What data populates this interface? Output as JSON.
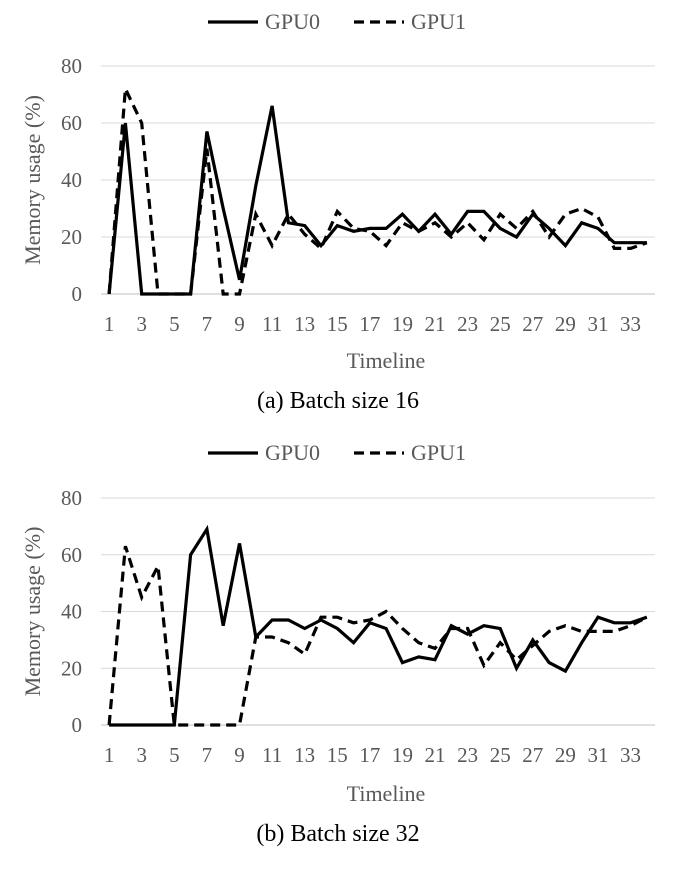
{
  "chart_data": [
    {
      "type": "line",
      "caption": "(a) Batch size 16",
      "xlabel": "Timeline",
      "ylabel": "Memory usage (%)",
      "ylim": [
        0,
        80
      ],
      "yticks": [
        0,
        20,
        40,
        60,
        80
      ],
      "x": [
        1,
        2,
        3,
        4,
        5,
        6,
        7,
        8,
        9,
        10,
        11,
        12,
        13,
        14,
        15,
        16,
        17,
        18,
        19,
        20,
        21,
        22,
        23,
        24,
        25,
        26,
        27,
        28,
        29,
        30,
        31,
        32,
        33,
        34
      ],
      "xtick_labels": [
        "1",
        "3",
        "5",
        "7",
        "9",
        "11",
        "13",
        "15",
        "17",
        "19",
        "21",
        "23",
        "25",
        "27",
        "29",
        "31",
        "33"
      ],
      "legend": "top",
      "grid": true,
      "series": [
        {
          "name": "GPU0",
          "style": "solid",
          "color": "#000000",
          "values": [
            0,
            60,
            0,
            0,
            0,
            0,
            57,
            30,
            5,
            38,
            66,
            25,
            24,
            17,
            24,
            22,
            23,
            23,
            28,
            22,
            28,
            21,
            29,
            29,
            23,
            20,
            28,
            23,
            17,
            25,
            23,
            18,
            18,
            18
          ]
        },
        {
          "name": "GPU1",
          "style": "dashed",
          "color": "#000000",
          "values": [
            0,
            72,
            60,
            0,
            0,
            0,
            51,
            0,
            0,
            28,
            17,
            28,
            21,
            16,
            29,
            23,
            22,
            17,
            25,
            22,
            25,
            20,
            25,
            19,
            28,
            23,
            29,
            20,
            28,
            30,
            27,
            16,
            16,
            18
          ]
        }
      ]
    },
    {
      "type": "line",
      "caption": "(b) Batch size 32",
      "xlabel": "Timeline",
      "ylabel": "Memory usage (%)",
      "ylim": [
        0,
        80
      ],
      "yticks": [
        0,
        20,
        40,
        60,
        80
      ],
      "x": [
        1,
        2,
        3,
        4,
        5,
        6,
        7,
        8,
        9,
        10,
        11,
        12,
        13,
        14,
        15,
        16,
        17,
        18,
        19,
        20,
        21,
        22,
        23,
        24,
        25,
        26,
        27,
        28,
        29,
        30,
        31,
        32,
        33,
        34
      ],
      "xtick_labels": [
        "1",
        "3",
        "5",
        "7",
        "9",
        "11",
        "13",
        "15",
        "17",
        "19",
        "21",
        "23",
        "25",
        "27",
        "29",
        "31",
        "33"
      ],
      "legend": "top",
      "grid": true,
      "series": [
        {
          "name": "GPU0",
          "style": "solid",
          "color": "#000000",
          "values": [
            0,
            0,
            0,
            0,
            0,
            60,
            69,
            35,
            64,
            31,
            37,
            37,
            34,
            37,
            34,
            29,
            36,
            34,
            22,
            24,
            23,
            35,
            32,
            35,
            34,
            20,
            30,
            22,
            19,
            29,
            38,
            36,
            36,
            38
          ]
        },
        {
          "name": "GPU1",
          "style": "dashed",
          "color": "#000000",
          "values": [
            0,
            63,
            45,
            56,
            0,
            0,
            0,
            0,
            0,
            31,
            31,
            29,
            25,
            38,
            38,
            36,
            37,
            40,
            34,
            29,
            27,
            34,
            34,
            21,
            29,
            23,
            28,
            33,
            35,
            33,
            33,
            33,
            35,
            38
          ]
        }
      ]
    }
  ]
}
